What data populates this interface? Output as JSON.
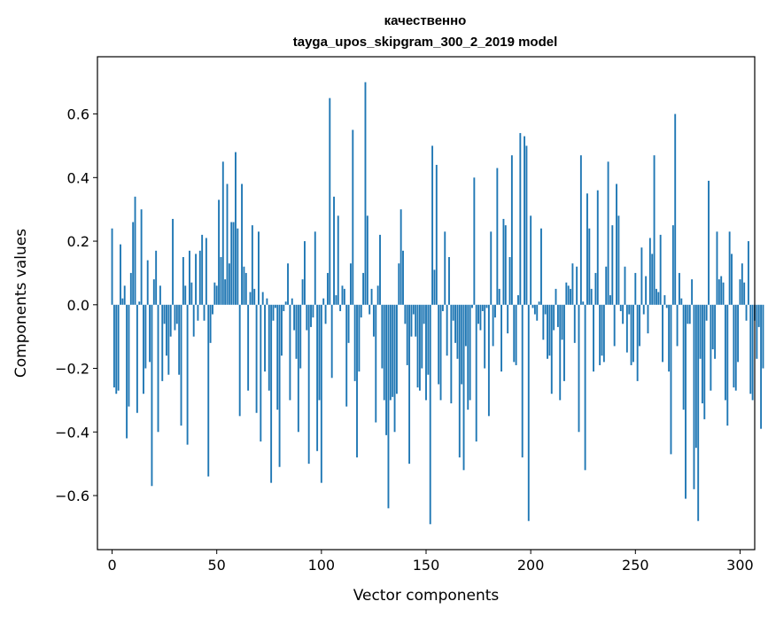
{
  "chart_data": {
    "type": "bar",
    "title": "качественно",
    "subtitle": "tayga_upos_skipgram_300_2_2019 model",
    "xlabel": "Vector components",
    "ylabel": "Components values",
    "xlim": [
      -7,
      307
    ],
    "ylim": [
      -0.77,
      0.78
    ],
    "x_ticks": [
      0,
      50,
      100,
      150,
      200,
      250,
      300
    ],
    "x_tick_labels": [
      "0",
      "50",
      "100",
      "150",
      "200",
      "250",
      "300"
    ],
    "y_ticks": [
      -0.6,
      -0.4,
      -0.2,
      0.0,
      0.2,
      0.4,
      0.6
    ],
    "y_tick_labels": [
      "−0.6",
      "−0.4",
      "−0.2",
      "0.0",
      "0.2",
      "0.4",
      "0.6"
    ],
    "bar_color": "#1f77b4",
    "values": [
      0.24,
      -0.26,
      -0.28,
      -0.27,
      0.19,
      0.02,
      0.06,
      -0.42,
      -0.32,
      0.1,
      0.26,
      0.34,
      -0.34,
      0.01,
      0.3,
      -0.28,
      -0.2,
      0.14,
      -0.18,
      -0.57,
      0.08,
      0.17,
      -0.4,
      0.06,
      -0.24,
      -0.06,
      -0.16,
      -0.22,
      -0.1,
      0.27,
      -0.08,
      -0.06,
      -0.22,
      -0.38,
      0.15,
      0.06,
      -0.44,
      0.17,
      0.07,
      -0.1,
      0.16,
      -0.05,
      0.17,
      0.22,
      -0.05,
      0.21,
      -0.54,
      -0.12,
      -0.03,
      0.07,
      0.06,
      0.33,
      0.15,
      0.45,
      0.08,
      0.38,
      0.13,
      0.26,
      0.26,
      0.48,
      0.24,
      -0.35,
      0.38,
      0.12,
      0.1,
      -0.27,
      0.04,
      0.25,
      0.05,
      -0.34,
      0.23,
      -0.43,
      0.04,
      -0.21,
      0.02,
      -0.27,
      -0.56,
      -0.05,
      -0.01,
      -0.33,
      -0.51,
      -0.16,
      -0.02,
      0.01,
      0.13,
      -0.3,
      0.02,
      -0.08,
      -0.17,
      -0.4,
      -0.2,
      0.08,
      0.2,
      -0.08,
      -0.5,
      -0.07,
      -0.04,
      0.23,
      -0.46,
      -0.3,
      -0.56,
      0.02,
      -0.06,
      0.1,
      0.65,
      -0.23,
      0.34,
      0.03,
      0.28,
      -0.02,
      0.06,
      0.05,
      -0.32,
      -0.12,
      0.13,
      0.55,
      -0.24,
      -0.48,
      -0.21,
      -0.04,
      0.1,
      0.7,
      0.28,
      -0.03,
      0.05,
      -0.1,
      -0.37,
      0.06,
      0.22,
      -0.2,
      -0.3,
      -0.41,
      -0.64,
      -0.3,
      -0.29,
      -0.4,
      -0.28,
      0.13,
      0.3,
      0.17,
      -0.06,
      -0.19,
      -0.5,
      -0.1,
      -0.03,
      -0.1,
      -0.26,
      -0.27,
      -0.2,
      -0.06,
      -0.3,
      -0.22,
      -0.69,
      0.5,
      0.11,
      0.44,
      -0.25,
      -0.3,
      -0.02,
      0.23,
      -0.16,
      0.15,
      -0.31,
      -0.05,
      -0.12,
      -0.17,
      -0.48,
      -0.25,
      -0.52,
      -0.13,
      -0.33,
      -0.3,
      -0.01,
      0.4,
      -0.43,
      -0.06,
      -0.08,
      -0.02,
      -0.2,
      -0.01,
      -0.35,
      0.23,
      -0.13,
      -0.04,
      0.43,
      0.05,
      -0.21,
      0.27,
      0.25,
      -0.09,
      0.15,
      0.47,
      -0.18,
      -0.19,
      0.03,
      0.54,
      -0.48,
      0.53,
      0.5,
      -0.68,
      0.28,
      -0.01,
      -0.03,
      -0.05,
      0.01,
      0.24,
      -0.11,
      -0.03,
      -0.17,
      -0.16,
      -0.28,
      -0.08,
      0.05,
      -0.07,
      -0.3,
      -0.11,
      -0.24,
      0.07,
      0.06,
      0.05,
      0.13,
      -0.12,
      0.12,
      -0.4,
      0.47,
      0.01,
      -0.52,
      0.35,
      0.24,
      0.05,
      -0.21,
      0.1,
      0.36,
      -0.19,
      -0.16,
      -0.18,
      0.12,
      0.45,
      0.03,
      0.25,
      -0.13,
      0.38,
      0.28,
      -0.02,
      -0.06,
      0.12,
      -0.15,
      -0.03,
      -0.19,
      -0.18,
      0.1,
      -0.24,
      -0.13,
      0.18,
      -0.03,
      0.09,
      -0.09,
      0.21,
      0.16,
      0.47,
      0.05,
      0.04,
      0.22,
      -0.18,
      0.03,
      -0.01,
      -0.21,
      -0.47,
      0.25,
      0.6,
      -0.13,
      0.1,
      0.02,
      -0.33,
      -0.61,
      -0.06,
      -0.06,
      0.08,
      -0.58,
      -0.45,
      -0.68,
      -0.17,
      -0.31,
      -0.36,
      -0.05,
      0.39,
      -0.27,
      -0.14,
      -0.17,
      0.23,
      0.08,
      0.09,
      0.07,
      -0.3,
      -0.38,
      0.23,
      0.16,
      -0.26,
      -0.27,
      -0.18,
      0.08,
      0.13,
      0.07,
      -0.05,
      0.2,
      -0.28,
      -0.3,
      -0.05,
      -0.17,
      -0.07,
      -0.39,
      -0.2
    ]
  }
}
